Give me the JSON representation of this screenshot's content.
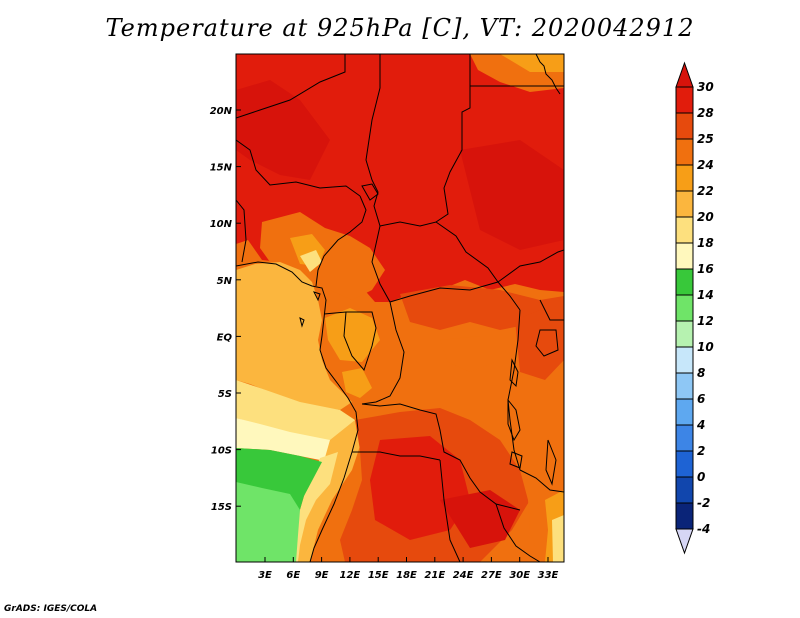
{
  "title": "Temperature at 925hPa [C], VT: 2020042912",
  "credit": "GrADS: IGES/COLA",
  "map": {
    "lat_ticks": [
      "20N",
      "15N",
      "10N",
      "5N",
      "EQ",
      "5S",
      "10S",
      "15S"
    ],
    "lon_ticks": [
      "3E",
      "6E",
      "9E",
      "12E",
      "15E",
      "18E",
      "21E",
      "24E",
      "27E",
      "30E",
      "33E"
    ]
  },
  "colorbar": {
    "labels": [
      "30",
      "28",
      "25",
      "24",
      "22",
      "20",
      "18",
      "16",
      "14",
      "12",
      "10",
      "8",
      "6",
      "4",
      "2",
      "0",
      "-2",
      "-4"
    ],
    "colors": [
      "#e11c0c",
      "#e64a0d",
      "#f0700f",
      "#f79e17",
      "#fbb63e",
      "#fde07e",
      "#fff8bd",
      "#38c83a",
      "#6fe468",
      "#b6f2b0",
      "#c7e7fa",
      "#8ec7f5",
      "#5ea8f0",
      "#3d85e6",
      "#1e63d4",
      "#1146ad",
      "#0a2478"
    ],
    "top_cap_color": "#d7130b",
    "bottom_cap_color": "#d6d6f5"
  }
}
